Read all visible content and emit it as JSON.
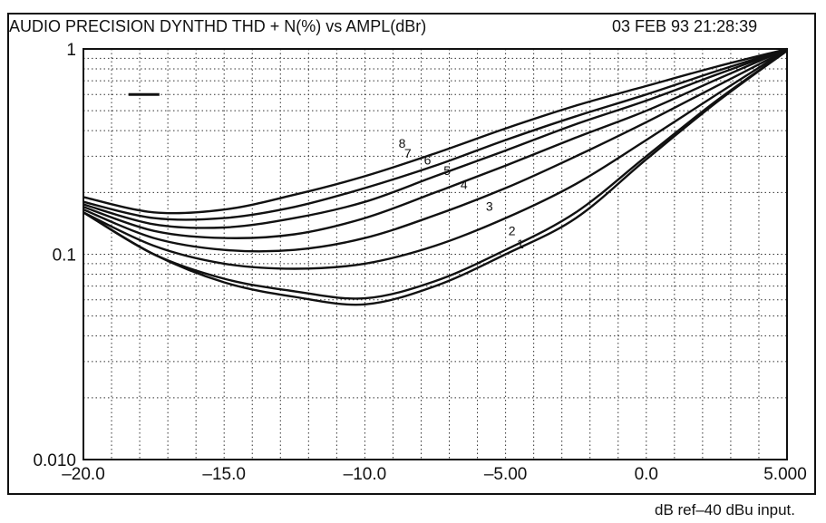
{
  "header": {
    "title": "AUDIO PRECISION DYNTHD THD + N(%) vs AMPL(dBr)",
    "timestamp": "03 FEB 93 21:28:39"
  },
  "footnote": "dB ref–40 dBu input.",
  "chart_data": {
    "type": "line",
    "title": "AUDIO PRECISION DYNTHD THD + N(%) vs AMPL(dBr)",
    "xlabel": "",
    "ylabel": "",
    "x_scale": "linear",
    "y_scale": "log",
    "xlim": [
      -20,
      5
    ],
    "ylim": [
      0.01,
      1
    ],
    "grid": true,
    "x_ticks": [
      {
        "value": -20,
        "label": "–20.0"
      },
      {
        "value": -15,
        "label": "–15.0"
      },
      {
        "value": -10,
        "label": "–10.0"
      },
      {
        "value": -5,
        "label": "–5.00"
      },
      {
        "value": 0,
        "label": "0.0"
      },
      {
        "value": 5,
        "label": "5.000"
      }
    ],
    "y_ticks": [
      {
        "value": 1,
        "label": "1"
      },
      {
        "value": 0.1,
        "label": "0.1"
      },
      {
        "value": 0.01,
        "label": "0.010"
      }
    ],
    "x": [
      -20,
      -17.5,
      -15,
      -12.5,
      -10,
      -7.5,
      -5,
      -2.5,
      0,
      2.5,
      5
    ],
    "series": [
      {
        "name": "1",
        "label_at": [
          -4.6,
          0.107
        ],
        "values": [
          0.16,
          0.1,
          0.073,
          0.062,
          0.057,
          0.07,
          0.1,
          0.15,
          0.29,
          0.55,
          0.98
        ]
      },
      {
        "name": "2",
        "label_at": [
          -4.9,
          0.124
        ],
        "values": [
          0.16,
          0.1,
          0.076,
          0.066,
          0.061,
          0.074,
          0.105,
          0.16,
          0.3,
          0.56,
          0.98
        ]
      },
      {
        "name": "3",
        "label_at": [
          -5.7,
          0.163
        ],
        "values": [
          0.16,
          0.11,
          0.09,
          0.085,
          0.09,
          0.11,
          0.15,
          0.22,
          0.36,
          0.6,
          0.99
        ]
      },
      {
        "name": "4",
        "label_at": [
          -6.6,
          0.208
        ],
        "values": [
          0.165,
          0.12,
          0.105,
          0.105,
          0.12,
          0.155,
          0.21,
          0.3,
          0.44,
          0.66,
          0.99
        ]
      },
      {
        "name": "5",
        "label_at": [
          -7.2,
          0.243
        ],
        "values": [
          0.17,
          0.13,
          0.12,
          0.125,
          0.15,
          0.2,
          0.27,
          0.37,
          0.5,
          0.71,
          1.0
        ]
      },
      {
        "name": "6",
        "label_at": [
          -7.9,
          0.273
        ],
        "values": [
          0.175,
          0.14,
          0.135,
          0.15,
          0.18,
          0.24,
          0.32,
          0.43,
          0.56,
          0.75,
          1.0
        ]
      },
      {
        "name": "7",
        "label_at": [
          -8.6,
          0.295
        ],
        "values": [
          0.18,
          0.15,
          0.15,
          0.17,
          0.21,
          0.27,
          0.36,
          0.47,
          0.6,
          0.78,
          1.0
        ]
      },
      {
        "name": "8",
        "label_at": [
          -8.8,
          0.33
        ],
        "values": [
          0.19,
          0.16,
          0.165,
          0.195,
          0.24,
          0.31,
          0.41,
          0.53,
          0.66,
          0.82,
          1.0
        ]
      }
    ],
    "colors": {
      "ink": "#111111",
      "background": "#ffffff"
    }
  }
}
